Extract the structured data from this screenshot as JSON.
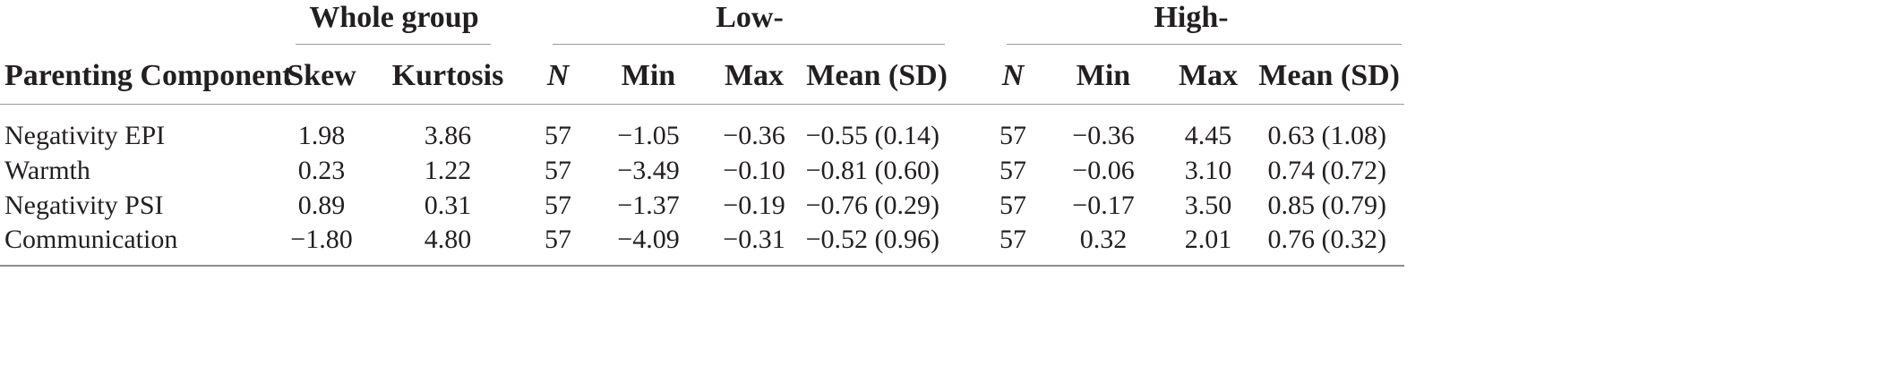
{
  "groups": {
    "whole": "Whole group",
    "low": "Low-",
    "high": "High-"
  },
  "columns": {
    "component": "Parenting Component",
    "skew": "Skew",
    "kurtosis": "Kurtosis",
    "low_n": "N",
    "low_min": "Min",
    "low_max": "Max",
    "low_mean": "Mean (SD)",
    "high_n": "N",
    "high_min": "Min",
    "high_max": "Max",
    "high_mean": "Mean (SD)"
  },
  "rows": [
    {
      "component": "Negativity EPI",
      "skew": "1.98",
      "kurtosis": "3.86",
      "low_n": "57",
      "low_min": "−1.05",
      "low_max": "−0.36",
      "low_mean": "−0.55 (0.14)",
      "high_n": "57",
      "high_min": "−0.36",
      "high_max": "4.45",
      "high_mean": "0.63 (1.08)"
    },
    {
      "component": "Warmth",
      "skew": "0.23",
      "kurtosis": "1.22",
      "low_n": "57",
      "low_min": "−3.49",
      "low_max": "−0.10",
      "low_mean": "−0.81 (0.60)",
      "high_n": "57",
      "high_min": "−0.06",
      "high_max": "3.10",
      "high_mean": "0.74 (0.72)"
    },
    {
      "component": "Negativity PSI",
      "skew": "0.89",
      "kurtosis": "0.31",
      "low_n": "57",
      "low_min": "−1.37",
      "low_max": "−0.19",
      "low_mean": "−0.76 (0.29)",
      "high_n": "57",
      "high_min": "−0.17",
      "high_max": "3.50",
      "high_mean": "0.85 (0.79)"
    },
    {
      "component": "Communication",
      "skew": "−1.80",
      "kurtosis": "4.80",
      "low_n": "57",
      "low_min": "−4.09",
      "low_max": "−0.31",
      "low_mean": "−0.52 (0.96)",
      "high_n": "57",
      "high_min": "0.32",
      "high_max": "2.01",
      "high_mean": "0.76 (0.32)"
    }
  ]
}
